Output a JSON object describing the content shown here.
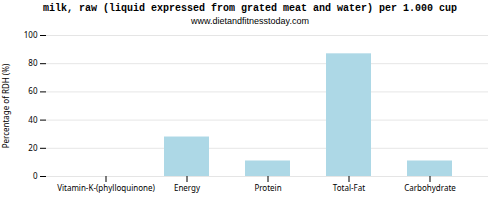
{
  "chart_data": {
    "type": "bar",
    "title": "milk, raw (liquid expressed from grated meat and water) per 1.000 cup",
    "subtitle": "www.dietandfitnesstoday.com",
    "ylabel": "Percentage of RDH (%)",
    "categories": [
      "Vitamin-K-(phylloquinone)",
      "Energy",
      "Protein",
      "Total-Fat",
      "Carbohydrate"
    ],
    "values": [
      0,
      28,
      11,
      87,
      11
    ],
    "color": "#add8e6",
    "ylim": [
      0,
      100
    ],
    "yticks": [
      0,
      20,
      40,
      60,
      80,
      100
    ],
    "grid": true
  }
}
